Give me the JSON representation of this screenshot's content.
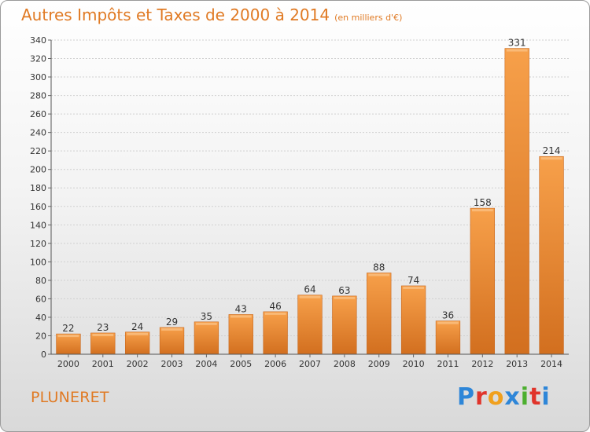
{
  "chart_data": {
    "type": "bar",
    "title": "Autres Impôts et Taxes de 2000 à 2014",
    "subtitle": "(en milliers d'€)",
    "categories": [
      "2000",
      "2001",
      "2002",
      "2003",
      "2004",
      "2005",
      "2006",
      "2007",
      "2008",
      "2009",
      "2010",
      "2011",
      "2012",
      "2013",
      "2014"
    ],
    "values": [
      22,
      23,
      24,
      29,
      35,
      43,
      46,
      64,
      63,
      88,
      74,
      36,
      158,
      331,
      214
    ],
    "ylim": [
      0,
      340
    ],
    "yticks": [
      0,
      20,
      40,
      60,
      80,
      100,
      120,
      140,
      160,
      180,
      200,
      220,
      240,
      260,
      280,
      300,
      320,
      340
    ],
    "grid": true,
    "bar_color_top": "#f7a04a",
    "bar_color_bottom": "#d26f1f"
  },
  "footer": {
    "place_name": "PLUNERET",
    "logo_text": "Proxiti",
    "logo_colors": [
      "#2e86d8",
      "#e0342b",
      "#f0a01e",
      "#2e86d8",
      "#4caf2f",
      "#e0342b",
      "#2e86d8"
    ]
  }
}
